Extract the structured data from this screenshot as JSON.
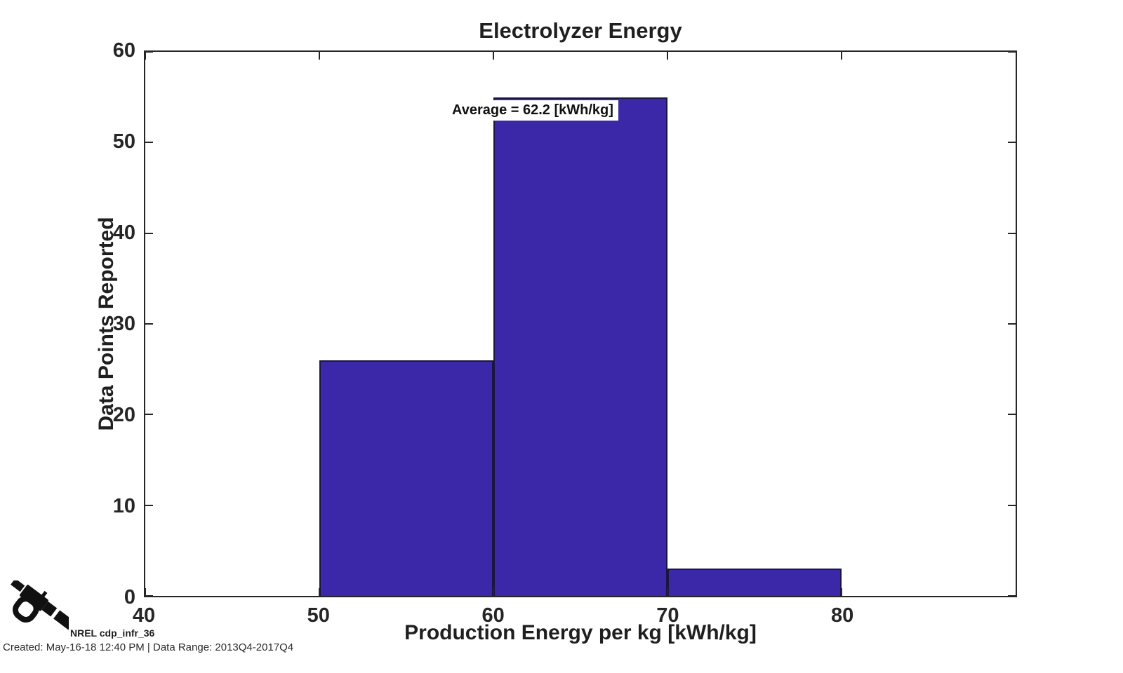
{
  "chart": {
    "title": "Electrolyzer Energy",
    "annotation": "Average = 62.2 [kWh/kg]",
    "xlabel": "Production Energy per kg [kWh/kg]",
    "ylabel": "Data Points Reported"
  },
  "chart_data": {
    "type": "bar",
    "subtype": "histogram",
    "title": "Electrolyzer Energy",
    "xlabel": "Production Energy per kg [kWh/kg]",
    "ylabel": "Data Points Reported",
    "annotation": "Average = 62.2 [kWh/kg]",
    "average_value": 62.2,
    "average_units": "kWh/kg",
    "bin_edges": [
      50,
      60,
      70,
      80
    ],
    "counts": [
      26,
      55,
      3
    ],
    "xlim": [
      40,
      90
    ],
    "ylim": [
      0,
      60
    ],
    "x_ticks": [
      40,
      50,
      60,
      70,
      80
    ],
    "y_ticks": [
      0,
      10,
      20,
      30,
      40,
      50,
      60
    ],
    "grid": false,
    "legend": null,
    "bar_color": "#3b28a8",
    "bar_edge_color": "#1a1642",
    "axis_color": "#262626"
  },
  "footer": {
    "logo": "fuel-nozzle-icon",
    "source_label": "NREL cdp_infr_36",
    "created_line": "Created: May-16-18 12:40 PM | Data Range: 2013Q4-2017Q4"
  }
}
